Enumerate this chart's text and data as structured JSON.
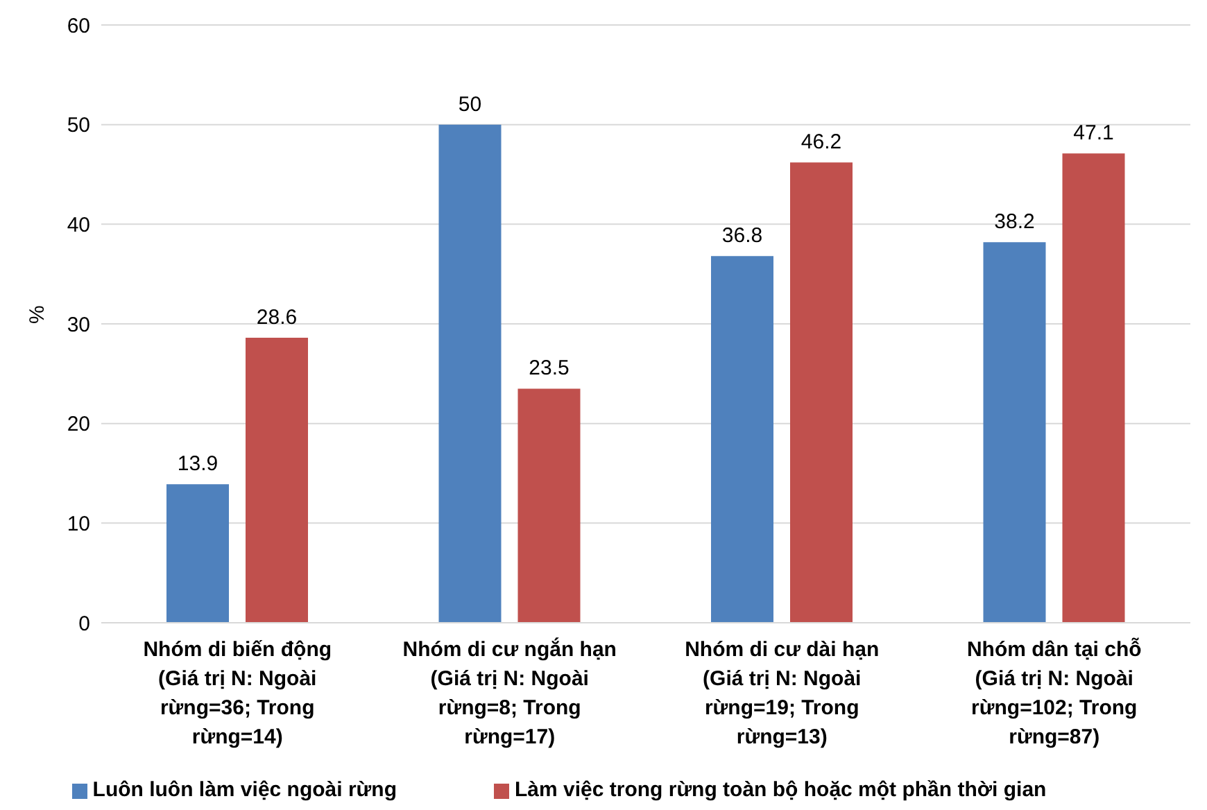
{
  "chart_data": {
    "type": "bar",
    "ylabel": "%",
    "categories": [
      "Nhóm di biến động (Giá trị N: Ngoài rừng=36; Trong rừng=14)",
      "Nhóm di cư ngắn hạn (Giá trị N: Ngoài rừng=8; Trong rừng=17)",
      "Nhóm di cư dài hạn (Giá trị N: Ngoài rừng=19; Trong rừng=13)",
      "Nhóm dân tại chỗ (Giá trị N: Ngoài rừng=102; Trong rừng=87)"
    ],
    "series": [
      {
        "name": "Luôn luôn làm việc ngoài rừng",
        "color": "#4f81bd",
        "values": [
          13.9,
          50,
          36.8,
          38.2
        ]
      },
      {
        "name": "Làm việc trong rừng toàn bộ hoặc một phần thời gian",
        "color": "#c0504d",
        "values": [
          28.6,
          23.5,
          46.2,
          47.1
        ]
      }
    ],
    "ylim": [
      0,
      60
    ],
    "yticks": [
      0,
      10,
      20,
      30,
      40,
      50,
      60
    ],
    "grid": "y",
    "legend": "bottom",
    "data_labels": true
  }
}
